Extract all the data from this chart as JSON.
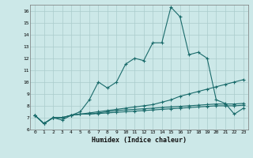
{
  "xlabel": "Humidex (Indice chaleur)",
  "bg_color": "#cce8e8",
  "grid_color": "#aacccc",
  "line_color": "#1a6b6b",
  "xlim": [
    -0.5,
    23.5
  ],
  "ylim": [
    6,
    16.5
  ],
  "yticks": [
    6,
    7,
    8,
    9,
    10,
    11,
    12,
    13,
    14,
    15,
    16
  ],
  "xticks": [
    0,
    1,
    2,
    3,
    4,
    5,
    6,
    7,
    8,
    9,
    10,
    11,
    12,
    13,
    14,
    15,
    16,
    17,
    18,
    19,
    20,
    21,
    22,
    23
  ],
  "series": [
    [
      7.2,
      6.5,
      7.0,
      6.8,
      7.2,
      7.5,
      8.5,
      10.0,
      9.5,
      10.0,
      11.5,
      12.0,
      11.8,
      13.3,
      13.3,
      16.3,
      15.5,
      12.3,
      12.5,
      12.0,
      8.5,
      8.2,
      7.3,
      7.8
    ],
    [
      7.2,
      6.5,
      7.0,
      7.0,
      7.2,
      7.3,
      7.4,
      7.5,
      7.6,
      7.7,
      7.8,
      7.9,
      8.0,
      8.1,
      8.3,
      8.5,
      8.8,
      9.0,
      9.2,
      9.4,
      9.6,
      9.8,
      10.0,
      10.2
    ],
    [
      7.2,
      6.5,
      7.0,
      7.0,
      7.2,
      7.3,
      7.3,
      7.4,
      7.5,
      7.6,
      7.65,
      7.7,
      7.75,
      7.8,
      7.85,
      7.9,
      7.95,
      8.0,
      8.05,
      8.1,
      8.15,
      8.15,
      8.15,
      8.2
    ],
    [
      7.2,
      6.5,
      7.0,
      7.0,
      7.2,
      7.3,
      7.3,
      7.35,
      7.4,
      7.45,
      7.5,
      7.55,
      7.6,
      7.65,
      7.7,
      7.75,
      7.8,
      7.85,
      7.9,
      7.95,
      8.0,
      8.0,
      8.0,
      8.05
    ]
  ]
}
